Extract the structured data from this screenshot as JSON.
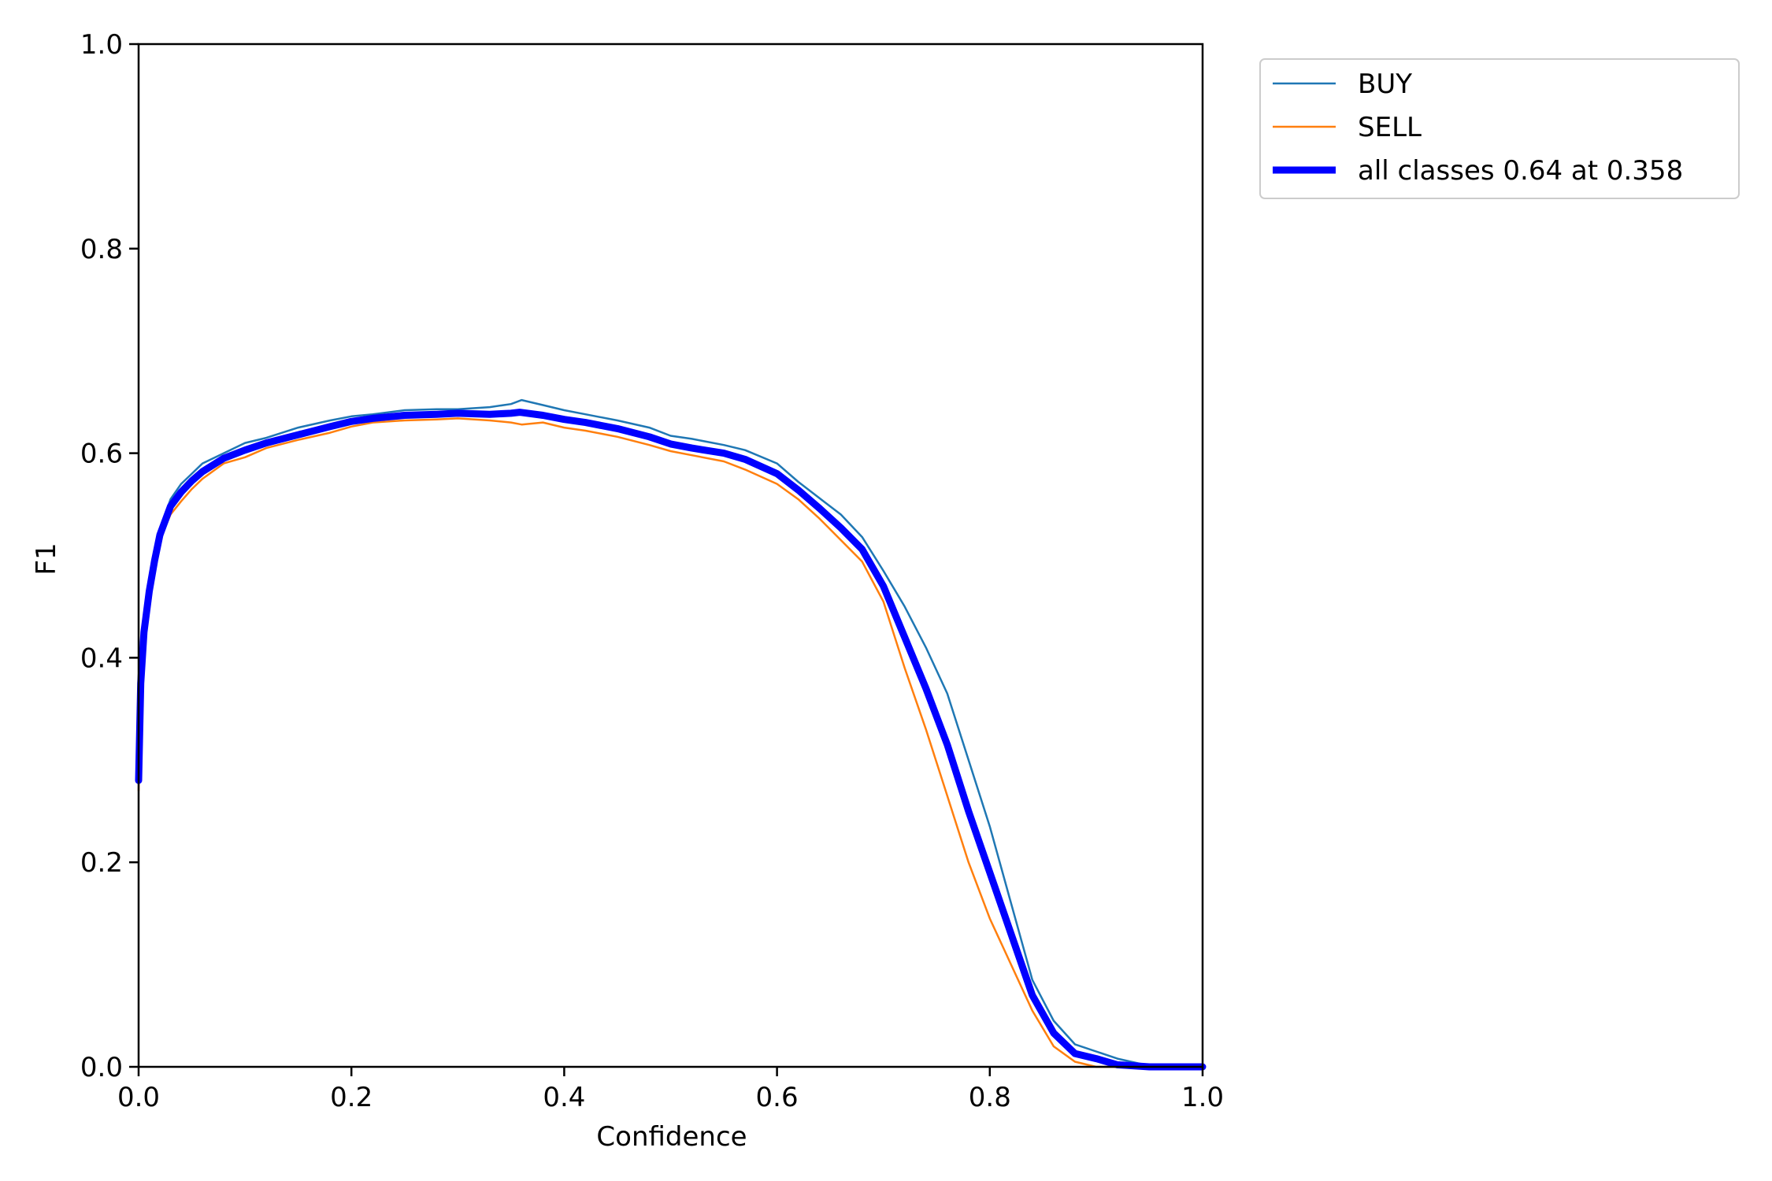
{
  "chart_data": {
    "type": "line",
    "xlabel": "Confidence",
    "ylabel": "F1",
    "xlim": [
      0,
      1
    ],
    "ylim": [
      0,
      1
    ],
    "x_ticks": [
      "0.0",
      "0.2",
      "0.4",
      "0.6",
      "0.8",
      "1.0"
    ],
    "y_ticks": [
      "0.0",
      "0.2",
      "0.4",
      "0.6",
      "0.8",
      "1.0"
    ],
    "grid": false,
    "legend_position": "outside-top-right",
    "series": [
      {
        "name": "BUY",
        "color": "#1f77b4",
        "x": [
          0.0,
          0.002,
          0.005,
          0.01,
          0.015,
          0.02,
          0.03,
          0.04,
          0.05,
          0.06,
          0.08,
          0.1,
          0.12,
          0.15,
          0.18,
          0.2,
          0.22,
          0.25,
          0.28,
          0.3,
          0.33,
          0.35,
          0.36,
          0.38,
          0.4,
          0.42,
          0.45,
          0.48,
          0.5,
          0.52,
          0.55,
          0.57,
          0.6,
          0.62,
          0.64,
          0.66,
          0.68,
          0.7,
          0.72,
          0.74,
          0.76,
          0.78,
          0.8,
          0.82,
          0.84,
          0.86,
          0.88,
          0.9,
          0.92,
          0.95,
          1.0
        ],
        "values": [
          0.29,
          0.38,
          0.43,
          0.47,
          0.5,
          0.525,
          0.555,
          0.57,
          0.58,
          0.59,
          0.6,
          0.61,
          0.615,
          0.625,
          0.632,
          0.636,
          0.638,
          0.642,
          0.643,
          0.643,
          0.645,
          0.648,
          0.652,
          0.647,
          0.642,
          0.638,
          0.632,
          0.625,
          0.617,
          0.614,
          0.608,
          0.603,
          0.59,
          0.572,
          0.556,
          0.54,
          0.518,
          0.485,
          0.45,
          0.41,
          0.365,
          0.3,
          0.235,
          0.16,
          0.085,
          0.045,
          0.022,
          0.015,
          0.008,
          0.001,
          0.0
        ]
      },
      {
        "name": "SELL",
        "color": "#ff7f0e",
        "x": [
          0.0,
          0.002,
          0.005,
          0.01,
          0.015,
          0.02,
          0.03,
          0.04,
          0.05,
          0.06,
          0.08,
          0.1,
          0.12,
          0.15,
          0.18,
          0.2,
          0.22,
          0.25,
          0.28,
          0.3,
          0.33,
          0.35,
          0.36,
          0.38,
          0.4,
          0.42,
          0.45,
          0.48,
          0.5,
          0.52,
          0.55,
          0.57,
          0.6,
          0.62,
          0.64,
          0.66,
          0.68,
          0.7,
          0.72,
          0.74,
          0.76,
          0.78,
          0.8,
          0.82,
          0.84,
          0.86,
          0.88,
          0.9,
          0.92,
          0.95,
          1.0
        ],
        "values": [
          0.27,
          0.37,
          0.42,
          0.46,
          0.49,
          0.515,
          0.54,
          0.553,
          0.565,
          0.575,
          0.59,
          0.596,
          0.605,
          0.613,
          0.62,
          0.626,
          0.63,
          0.632,
          0.633,
          0.634,
          0.632,
          0.63,
          0.628,
          0.63,
          0.625,
          0.622,
          0.616,
          0.608,
          0.602,
          0.598,
          0.592,
          0.584,
          0.57,
          0.555,
          0.536,
          0.515,
          0.494,
          0.455,
          0.39,
          0.33,
          0.265,
          0.2,
          0.145,
          0.1,
          0.055,
          0.02,
          0.005,
          0.0,
          0.0,
          0.0,
          0.0
        ]
      },
      {
        "name": "all classes 0.64 at 0.358",
        "color": "#0000ff",
        "bold": true,
        "x": [
          0.0,
          0.002,
          0.005,
          0.01,
          0.015,
          0.02,
          0.03,
          0.04,
          0.05,
          0.06,
          0.08,
          0.1,
          0.12,
          0.15,
          0.18,
          0.2,
          0.22,
          0.25,
          0.28,
          0.3,
          0.33,
          0.35,
          0.358,
          0.38,
          0.4,
          0.42,
          0.45,
          0.48,
          0.5,
          0.52,
          0.55,
          0.57,
          0.6,
          0.62,
          0.64,
          0.66,
          0.68,
          0.7,
          0.72,
          0.74,
          0.76,
          0.78,
          0.8,
          0.82,
          0.84,
          0.86,
          0.88,
          0.9,
          0.92,
          0.95,
          1.0
        ],
        "values": [
          0.28,
          0.375,
          0.425,
          0.465,
          0.495,
          0.52,
          0.548,
          0.562,
          0.573,
          0.582,
          0.595,
          0.603,
          0.61,
          0.618,
          0.626,
          0.631,
          0.634,
          0.637,
          0.638,
          0.639,
          0.638,
          0.639,
          0.64,
          0.637,
          0.633,
          0.63,
          0.624,
          0.616,
          0.609,
          0.605,
          0.6,
          0.594,
          0.58,
          0.564,
          0.546,
          0.527,
          0.506,
          0.47,
          0.42,
          0.37,
          0.315,
          0.25,
          0.19,
          0.13,
          0.07,
          0.033,
          0.013,
          0.008,
          0.002,
          0.0,
          0.0
        ]
      }
    ]
  }
}
